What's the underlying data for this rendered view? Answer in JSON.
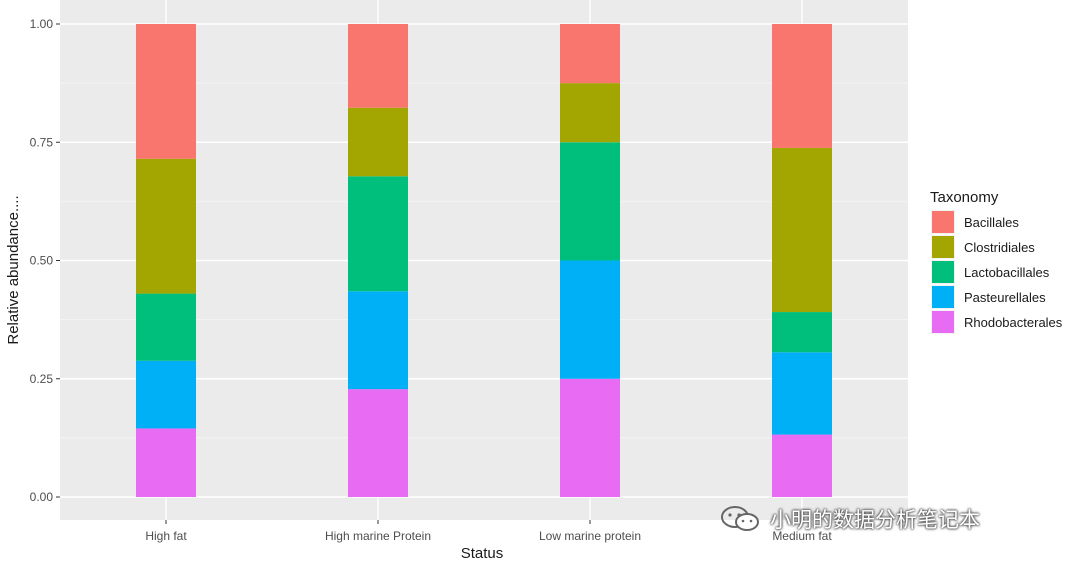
{
  "chart_data": {
    "type": "bar",
    "stacked": true,
    "title": "",
    "xlabel": "Status",
    "ylabel": "Relative abundance....",
    "ylim": [
      0,
      1
    ],
    "yticks": [
      "0.00",
      "0.25",
      "0.50",
      "0.75",
      "1.00"
    ],
    "ytick_values": [
      0,
      0.25,
      0.5,
      0.75,
      1.0
    ],
    "grid": true,
    "legend_title": "Taxonomy",
    "legend_position": "right",
    "categories": [
      "High fat",
      "High marine Protein",
      "Low marine protein",
      "Medium fat"
    ],
    "series": [
      {
        "name": "Bacillales",
        "color": "#F8766D",
        "values": [
          0.285,
          0.177,
          0.125,
          0.262
        ]
      },
      {
        "name": "Clostridiales",
        "color": "#A3A500",
        "values": [
          0.285,
          0.145,
          0.125,
          0.347
        ]
      },
      {
        "name": "Lactobacillales",
        "color": "#00BF7D",
        "values": [
          0.142,
          0.243,
          0.25,
          0.085
        ]
      },
      {
        "name": "Pasteurellales",
        "color": "#00B0F6",
        "values": [
          0.143,
          0.207,
          0.25,
          0.174
        ]
      },
      {
        "name": "Rhodobacterales",
        "color": "#E76BF3",
        "values": [
          0.145,
          0.228,
          0.25,
          0.132
        ]
      }
    ]
  },
  "watermark": {
    "text": "小明的数据分析笔记本",
    "icon": "wechat-icon"
  }
}
